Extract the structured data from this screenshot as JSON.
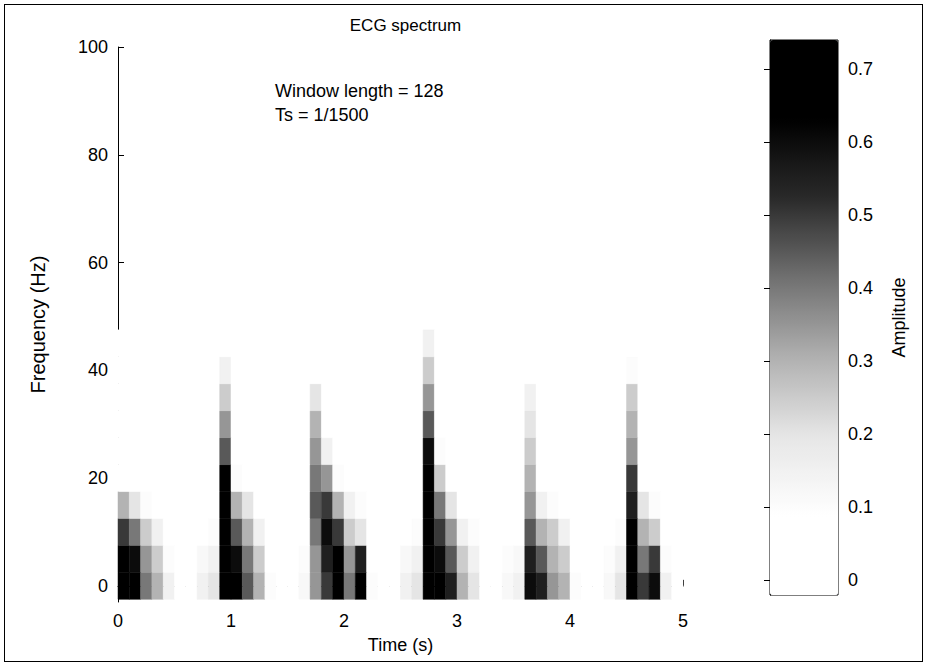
{
  "chart_data": {
    "type": "heatmap",
    "title": "ECG spectrum",
    "annotations": [
      "Window length = 128",
      "Ts = 1/1500"
    ],
    "x_label": "Time (s)",
    "y_label": "Frequency (Hz)",
    "x": [
      0.05,
      0.15,
      0.25,
      0.35,
      0.45,
      0.55,
      0.65,
      0.75,
      0.85,
      0.95,
      1.05,
      1.15,
      1.25,
      1.35,
      1.45,
      1.55,
      1.65,
      1.75,
      1.85,
      1.95,
      2.05,
      2.15,
      2.25,
      2.35,
      2.45,
      2.55,
      2.65,
      2.75,
      2.85,
      2.95,
      3.05,
      3.15,
      3.25,
      3.35,
      3.45,
      3.55,
      3.65,
      3.75,
      3.85,
      3.95,
      4.05,
      4.15,
      4.25,
      4.35,
      4.45,
      4.55,
      4.65,
      4.75,
      4.85,
      4.95
    ],
    "y": [
      0,
      5,
      10,
      15,
      20,
      25,
      30,
      35,
      40,
      45
    ],
    "cells": [
      [
        0.7,
        0.7,
        0.4,
        0.3,
        0.15,
        0,
        0,
        0.15,
        0.2,
        0.75,
        0.7,
        0.45,
        0.3,
        0.1,
        0,
        0,
        0.12,
        0.35,
        0.5,
        0.7,
        0.4,
        0.65,
        0.1,
        0,
        0.05,
        0.15,
        0.2,
        0.75,
        0.7,
        0.55,
        0.3,
        0.2,
        0.05,
        0,
        0.12,
        0.15,
        0.6,
        0.55,
        0.35,
        0.3,
        0.1,
        0,
        0,
        0.12,
        0.2,
        0.75,
        0.5,
        0.6,
        0.15,
        0
      ],
      [
        0.7,
        0.6,
        0.35,
        0.25,
        0.1,
        0,
        0,
        0.12,
        0.15,
        0.75,
        0.6,
        0.4,
        0.25,
        0.05,
        0,
        0,
        0.1,
        0.35,
        0.55,
        0.65,
        0.35,
        0.55,
        0.05,
        0,
        0,
        0.12,
        0.15,
        0.75,
        0.6,
        0.45,
        0.25,
        0.15,
        0,
        0,
        0.1,
        0.12,
        0.55,
        0.45,
        0.3,
        0.25,
        0.05,
        0,
        0,
        0.1,
        0.15,
        0.7,
        0.4,
        0.5,
        0.1,
        0
      ],
      [
        0.5,
        0.4,
        0.25,
        0.15,
        0,
        0,
        0,
        0.05,
        0.1,
        0.72,
        0.45,
        0.3,
        0.15,
        0,
        0,
        0,
        0.05,
        0.4,
        0.6,
        0.5,
        0.25,
        0.2,
        0,
        0,
        0,
        0.08,
        0.1,
        0.75,
        0.5,
        0.35,
        0.15,
        0.1,
        0,
        0,
        0.05,
        0.05,
        0.45,
        0.3,
        0.25,
        0.15,
        0,
        0,
        0,
        0.05,
        0.1,
        0.65,
        0.3,
        0.25,
        0,
        0
      ],
      [
        0.3,
        0.2,
        0.1,
        0,
        0,
        0,
        0,
        0,
        0,
        0.7,
        0.3,
        0.2,
        0.05,
        0,
        0,
        0,
        0,
        0.45,
        0.5,
        0.3,
        0.15,
        0.1,
        0,
        0,
        0,
        0,
        0.05,
        0.72,
        0.4,
        0.2,
        0.05,
        0,
        0,
        0,
        0,
        0,
        0.35,
        0.15,
        0.1,
        0.05,
        0,
        0,
        0,
        0,
        0,
        0.55,
        0.2,
        0.1,
        0,
        0
      ],
      [
        0,
        0,
        0,
        0,
        0,
        0,
        0,
        0,
        0,
        0.65,
        0.1,
        0,
        0,
        0,
        0,
        0,
        0,
        0.4,
        0.35,
        0.1,
        0,
        0,
        0,
        0,
        0,
        0,
        0,
        0.7,
        0.25,
        0.05,
        0,
        0,
        0,
        0,
        0,
        0,
        0.3,
        0,
        0,
        0,
        0,
        0,
        0,
        0,
        0,
        0.5,
        0.05,
        0,
        0,
        0
      ],
      [
        0,
        0,
        0,
        0,
        0,
        0,
        0,
        0,
        0,
        0.45,
        0,
        0,
        0,
        0,
        0,
        0,
        0,
        0.35,
        0.15,
        0,
        0,
        0,
        0,
        0,
        0,
        0,
        0,
        0.6,
        0.1,
        0,
        0,
        0,
        0,
        0,
        0,
        0,
        0.25,
        0,
        0,
        0,
        0,
        0,
        0,
        0,
        0,
        0.35,
        0,
        0,
        0,
        0
      ],
      [
        0,
        0,
        0,
        0,
        0,
        0,
        0,
        0,
        0,
        0.35,
        0,
        0,
        0,
        0,
        0,
        0,
        0,
        0.3,
        0,
        0,
        0,
        0,
        0,
        0,
        0,
        0,
        0,
        0.45,
        0,
        0,
        0,
        0,
        0,
        0,
        0,
        0,
        0.2,
        0,
        0,
        0,
        0,
        0,
        0,
        0,
        0,
        0.3,
        0,
        0,
        0,
        0
      ],
      [
        0,
        0,
        0,
        0,
        0,
        0,
        0,
        0,
        0,
        0.25,
        0,
        0,
        0,
        0,
        0,
        0,
        0,
        0.2,
        0,
        0,
        0,
        0,
        0,
        0,
        0,
        0,
        0,
        0.35,
        0,
        0,
        0,
        0,
        0,
        0,
        0,
        0,
        0.15,
        0,
        0,
        0,
        0,
        0,
        0,
        0,
        0,
        0.25,
        0,
        0,
        0,
        0
      ],
      [
        0,
        0,
        0,
        0,
        0,
        0,
        0,
        0,
        0,
        0.15,
        0,
        0,
        0,
        0,
        0,
        0,
        0,
        0,
        0,
        0,
        0,
        0,
        0,
        0,
        0,
        0,
        0,
        0.25,
        0,
        0,
        0,
        0,
        0,
        0,
        0,
        0,
        0,
        0,
        0,
        0,
        0,
        0,
        0,
        0,
        0,
        0.1,
        0,
        0,
        0,
        0
      ],
      [
        0,
        0,
        0,
        0,
        0,
        0,
        0,
        0,
        0,
        0,
        0,
        0,
        0,
        0,
        0,
        0,
        0,
        0,
        0,
        0,
        0,
        0,
        0,
        0,
        0,
        0,
        0,
        0.15,
        0,
        0,
        0,
        0,
        0,
        0,
        0,
        0,
        0,
        0,
        0,
        0,
        0,
        0,
        0,
        0,
        0,
        0,
        0,
        0,
        0,
        0
      ]
    ],
    "xlim": [
      0,
      5
    ],
    "xticks": [
      0,
      1,
      2,
      3,
      4,
      5
    ],
    "ylim": [
      -3,
      100
    ],
    "yticks": [
      0,
      20,
      40,
      60,
      80,
      100
    ],
    "colorbar": {
      "label": "Amplitude",
      "lim": [
        -0.02,
        0.74
      ],
      "ticks": [
        0,
        0.1,
        0.2,
        0.3,
        0.4,
        0.5,
        0.6,
        0.7
      ]
    }
  }
}
